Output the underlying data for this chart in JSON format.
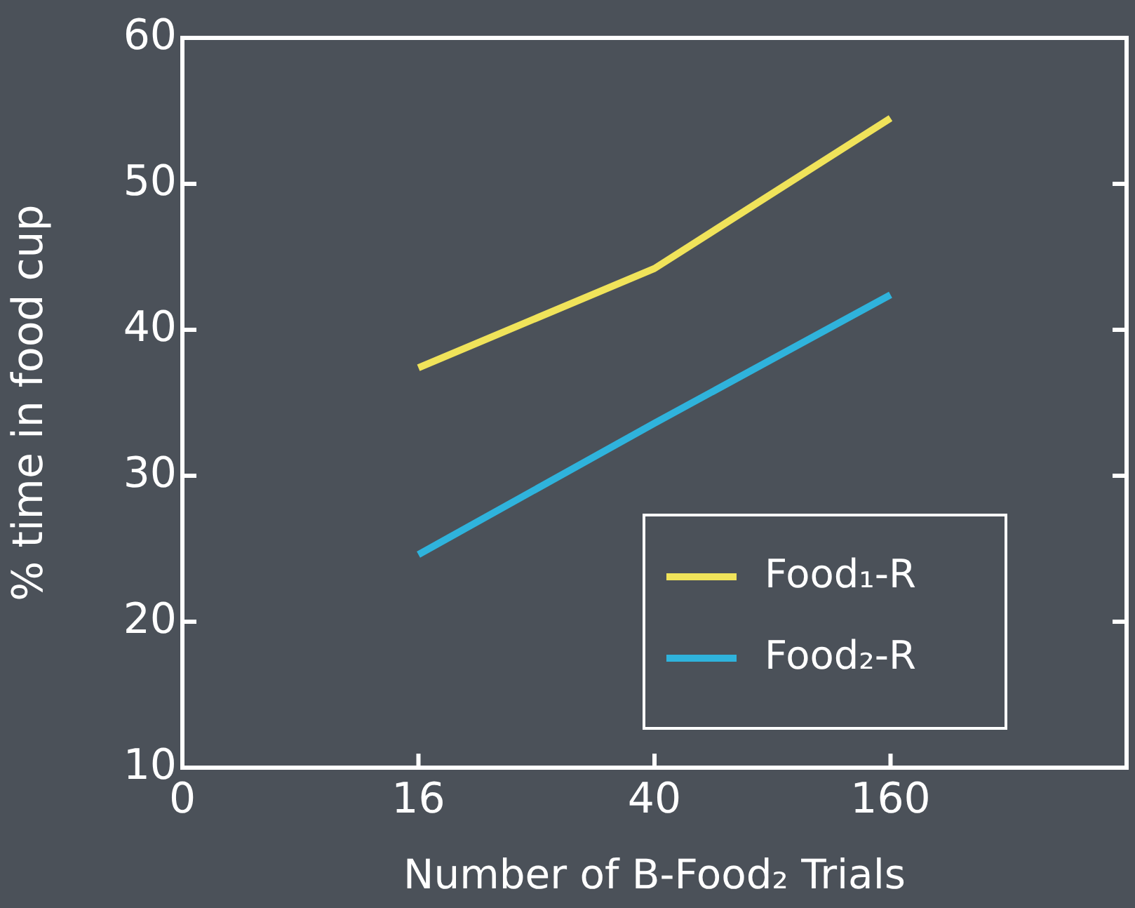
{
  "chart_data": {
    "type": "line",
    "xlabel": "Number of B-Food₂ Trials",
    "ylabel": "% time in food cup",
    "categories": [
      "0",
      "16",
      "40",
      "160",
      null
    ],
    "series": [
      {
        "name": "Food₁-R",
        "color": "#f0e35a",
        "values": [
          null,
          37.4,
          44.2,
          54.5,
          null
        ]
      },
      {
        "name": "Food₂-R",
        "color": "#2fb3dc",
        "values": [
          null,
          24.6,
          33.6,
          42.4,
          null
        ]
      }
    ],
    "ylim": [
      10,
      60
    ],
    "yticks": [
      10,
      20,
      30,
      40,
      50,
      60
    ],
    "grid": false,
    "legend": "bottom right",
    "marker": "none",
    "line_style": "solid"
  }
}
